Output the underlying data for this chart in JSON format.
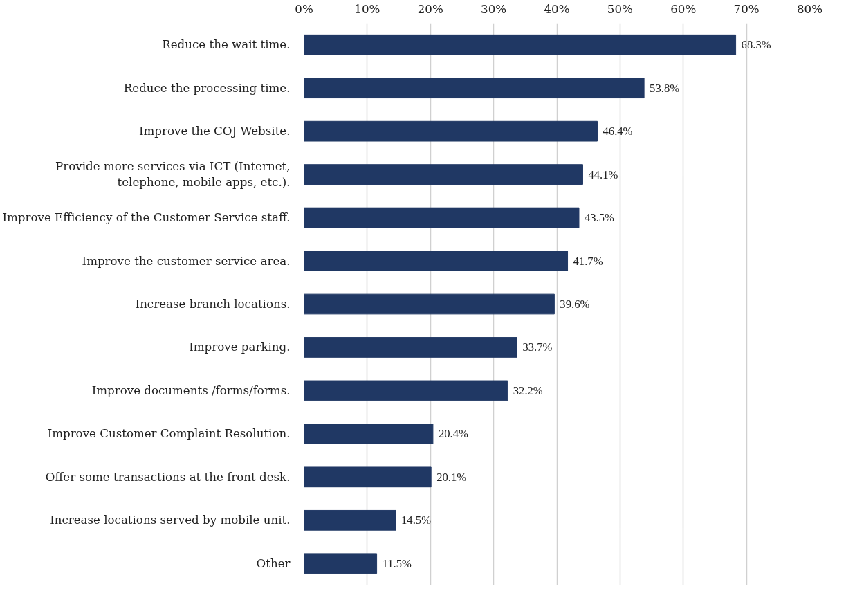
{
  "chart_data": {
    "type": "bar",
    "orientation": "horizontal",
    "categories": [
      "Reduce the wait time.",
      "Reduce the processing time.",
      "Improve the COJ Website.",
      "Provide more services via ICT (Internet, telephone, mobile apps, etc.).",
      "Improve Efficiency of the Customer Service staff.",
      "Improve the customer service area.",
      "Increase branch locations.",
      "Improve parking.",
      "Improve documents /forms/forms.",
      "Improve Customer Complaint Resolution.",
      "Offer some transactions at the front desk.",
      "Increase locations served by mobile unit.",
      "Other"
    ],
    "values": [
      68.3,
      53.8,
      46.4,
      44.1,
      43.5,
      41.7,
      39.6,
      33.7,
      32.2,
      20.4,
      20.1,
      14.5,
      11.5
    ],
    "value_labels": [
      "68.3%",
      "53.8%",
      "46.4%",
      "44.1%",
      "43.5%",
      "41.7%",
      "39.6%",
      "33.7%",
      "32.2%",
      "20.4%",
      "20.1%",
      "14.5%",
      "11.5%"
    ],
    "color": "#203864",
    "xlim": [
      0,
      80
    ],
    "xticks": [
      {
        "value": 0,
        "label": "0%"
      },
      {
        "value": 10,
        "label": "10%"
      },
      {
        "value": 20,
        "label": "20%"
      },
      {
        "value": 30,
        "label": "30%"
      },
      {
        "value": 40,
        "label": "40%"
      },
      {
        "value": 50,
        "label": "50%"
      },
      {
        "value": 60,
        "label": "60%"
      },
      {
        "value": 70,
        "label": "70%"
      },
      {
        "value": 80,
        "label": "80%"
      }
    ],
    "grid": "x"
  }
}
